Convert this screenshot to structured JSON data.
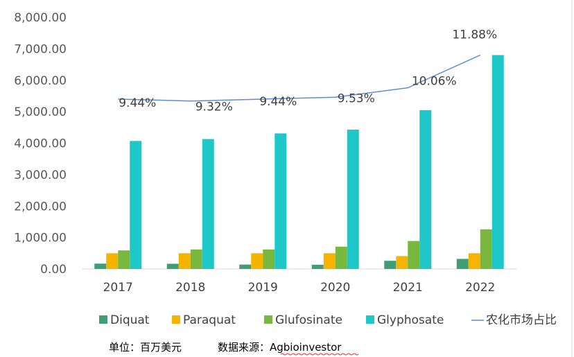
{
  "chart_data": {
    "type": "bar+line",
    "categories": [
      "2017",
      "2018",
      "2019",
      "2020",
      "2021",
      "2022"
    ],
    "series": [
      {
        "name": "Diquat",
        "color": "#3f9e76",
        "values": [
          170,
          165,
          140,
          135,
          260,
          320
        ]
      },
      {
        "name": "Paraquat",
        "color": "#f5b400",
        "values": [
          500,
          500,
          500,
          500,
          410,
          500
        ]
      },
      {
        "name": "Glufosinate",
        "color": "#78b83e",
        "values": [
          590,
          620,
          620,
          710,
          890,
          1260
        ]
      },
      {
        "name": "Glyphosate",
        "color": "#1fc8c8",
        "values": [
          4070,
          4130,
          4310,
          4430,
          5050,
          6800
        ]
      }
    ],
    "line": {
      "name": "农化市场占比",
      "color": "#5b8fd1",
      "values": [
        9.44,
        9.32,
        9.44,
        9.53,
        10.06,
        11.88
      ],
      "labels": [
        "9.44%",
        "9.32%",
        "9.44%",
        "9.53%",
        "10.06%",
        "11.88%"
      ],
      "plot_y": [
        5400,
        5340,
        5400,
        5460,
        5760,
        6800
      ]
    },
    "y_ticks": [
      "0.00",
      "1,000.00",
      "2,000.00",
      "3,000.00",
      "4,000.00",
      "5,000.00",
      "6,000.00",
      "7,000.00",
      "8,000.00"
    ],
    "ylim": [
      0,
      8000
    ],
    "legend": "bottom",
    "unit_note": "单位：百万美元",
    "source_note": "数据来源：Agbioinvestor"
  }
}
